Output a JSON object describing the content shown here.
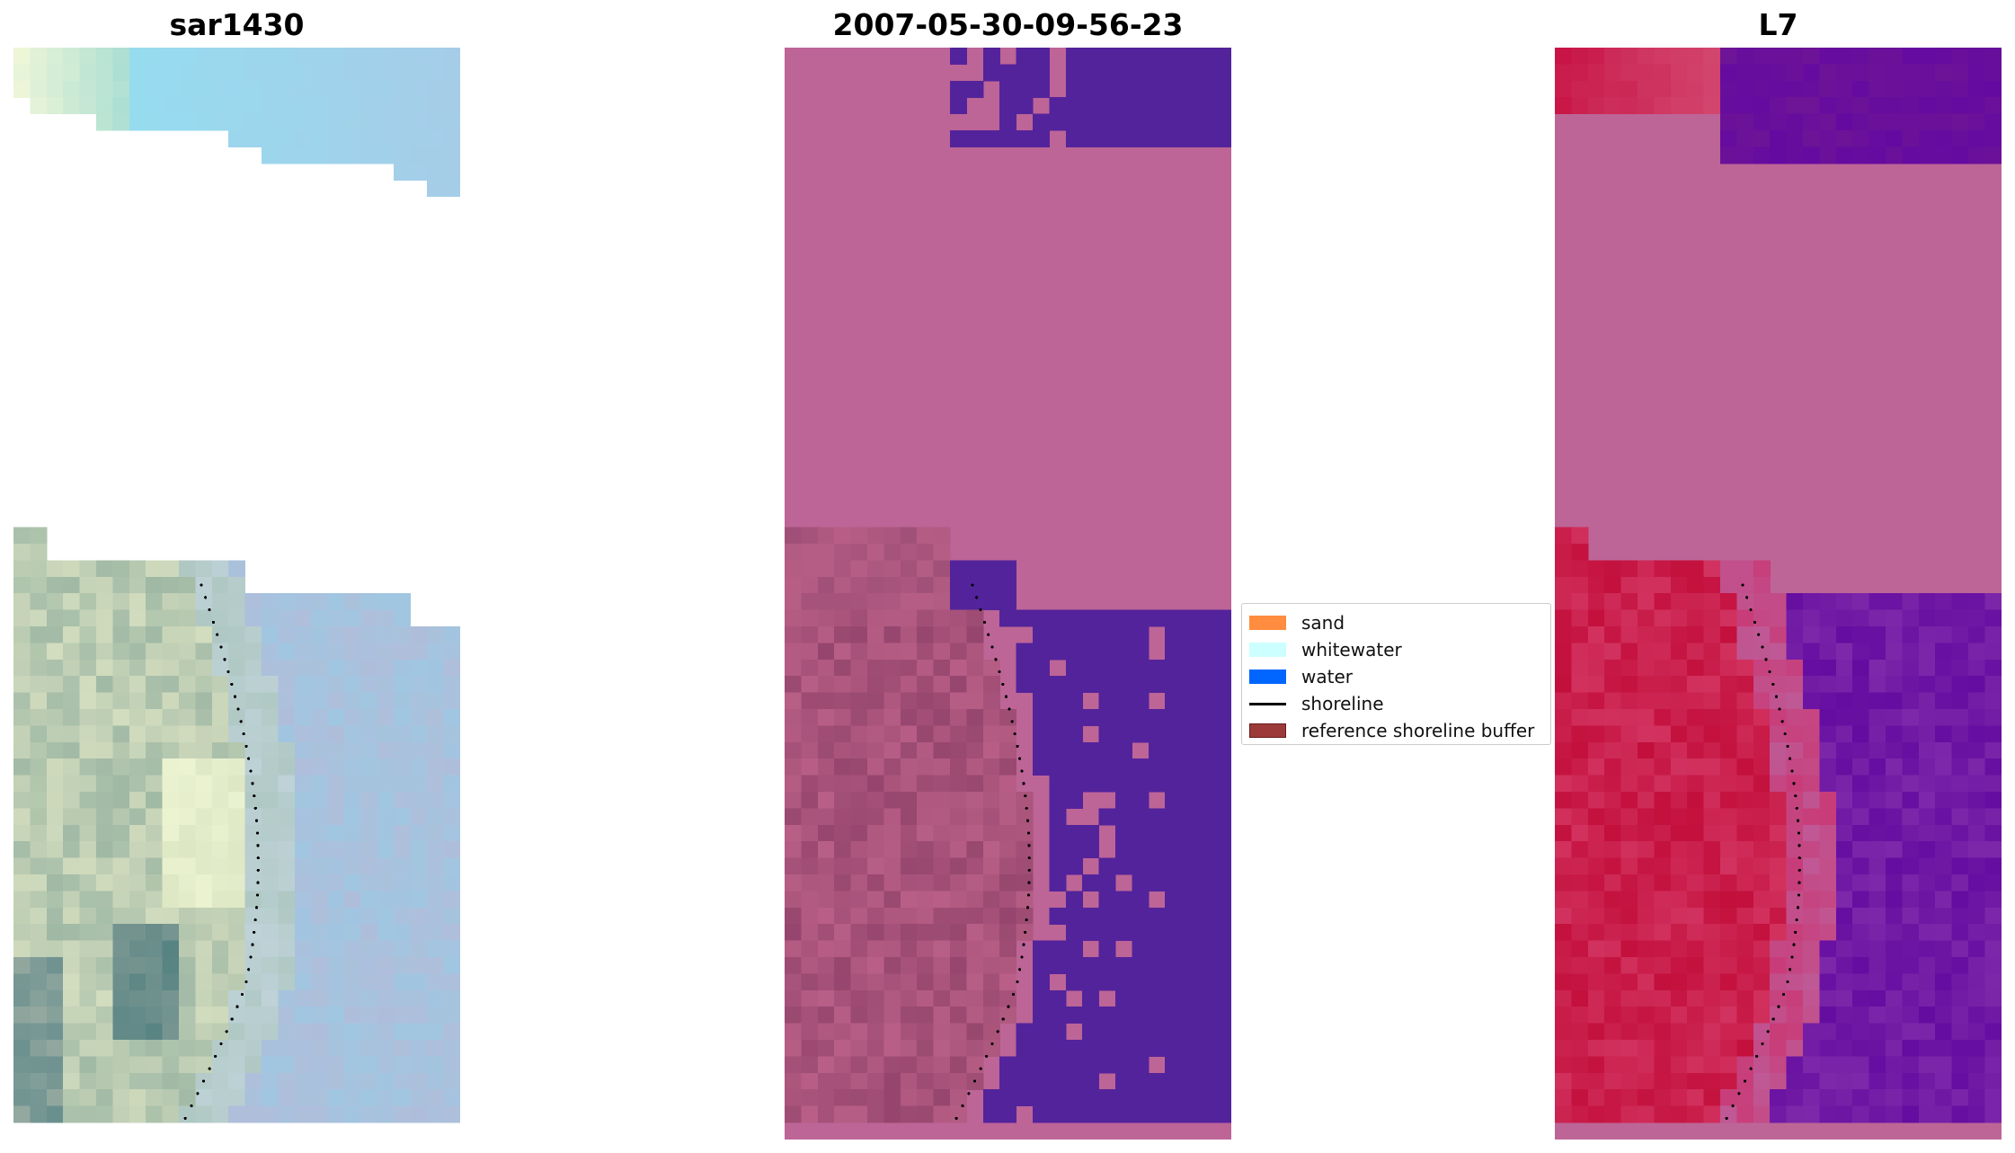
{
  "panels": [
    {
      "title": "sar1430",
      "kind": "rgb"
    },
    {
      "title": "2007-05-30-09-56-23",
      "kind": "classified"
    },
    {
      "title": "L7",
      "kind": "index"
    }
  ],
  "legend": {
    "items": [
      {
        "label": "sand",
        "color": "#ff8c3f",
        "kind": "patch"
      },
      {
        "label": "whitewater",
        "color": "#ccffff",
        "kind": "patch"
      },
      {
        "label": "water",
        "color": "#0066ff",
        "kind": "patch"
      },
      {
        "label": "shoreline",
        "color": "#000000",
        "kind": "line"
      },
      {
        "label": "reference shoreline buffer",
        "color": "#9c3a3a",
        "kind": "patch"
      }
    ]
  },
  "colors": {
    "buffer_overlay": "#bd6597",
    "water_class": "#53239b",
    "land_index": "#c8113f",
    "water_index": "#6a0ea2",
    "rgb_sky": "#a0d8ef",
    "rgb_land": "#a8c0a8",
    "shoreline": "#000000"
  }
}
